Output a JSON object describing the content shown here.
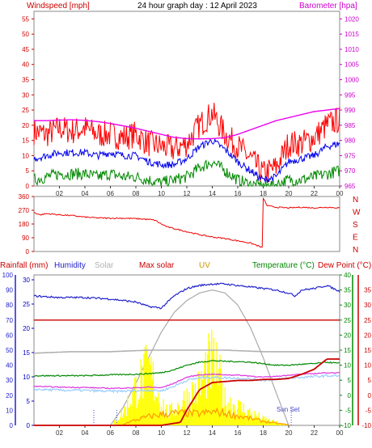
{
  "chart_data": [
    {
      "type": "line",
      "title": "24 hour graph day : 12 April 2023",
      "y_left_label": "Windspeed [mph]",
      "y_right_label": "Barometer [hpa]",
      "y_left_ticks": [
        "0",
        "5",
        "10",
        "15",
        "20",
        "25",
        "30",
        "35",
        "40",
        "45",
        "50",
        "55"
      ],
      "y_right_ticks": [
        "965",
        "970",
        "975",
        "980",
        "985",
        "990",
        "995",
        "1000",
        "1005",
        "1010",
        "1015",
        "1020"
      ],
      "ylim_left": [
        0,
        57.5
      ],
      "ylim_right": [
        965,
        1022.5
      ],
      "x_ticks": [
        "02",
        "04",
        "06",
        "08",
        "10",
        "12",
        "14",
        "16",
        "18",
        "20",
        "22",
        "00"
      ],
      "xlim": [
        0,
        24
      ],
      "colors": {
        "gust": "#ff0000",
        "avg": "#0000ee",
        "min": "#008800",
        "baro": "#ee00ee",
        "left_axis": "#cc0000",
        "right_axis": "#cc00cc"
      },
      "series": [
        {
          "key": "gust",
          "x": [
            0,
            1,
            2,
            3,
            4,
            5,
            6,
            7,
            8,
            9,
            10,
            11,
            12,
            13,
            14,
            15,
            16,
            17,
            18,
            19,
            20,
            21,
            22,
            23,
            24
          ],
          "values": [
            18,
            17,
            19,
            18,
            19,
            17,
            17,
            16,
            17,
            14,
            13,
            12,
            14,
            20,
            24,
            17,
            13,
            9,
            4,
            6,
            14,
            14,
            16,
            20,
            22
          ]
        },
        {
          "key": "avg",
          "x": [
            0,
            1,
            2,
            3,
            4,
            5,
            6,
            7,
            8,
            9,
            10,
            11,
            12,
            13,
            14,
            15,
            16,
            17,
            18,
            19,
            20,
            21,
            22,
            23,
            24
          ],
          "values": [
            9,
            10,
            11,
            11,
            11,
            10,
            11,
            10,
            10,
            8,
            7,
            7,
            9,
            13,
            15,
            12,
            8,
            5,
            2,
            3,
            8,
            9,
            10,
            13,
            14
          ]
        },
        {
          "key": "min",
          "x": [
            0,
            1,
            2,
            3,
            4,
            5,
            6,
            7,
            8,
            9,
            10,
            11,
            12,
            13,
            14,
            15,
            16,
            17,
            18,
            19,
            20,
            21,
            22,
            23,
            24
          ],
          "values": [
            2,
            3,
            4,
            4,
            4,
            3,
            4,
            3,
            3,
            2,
            1,
            2,
            3,
            6,
            8,
            5,
            2,
            0.5,
            0,
            0.5,
            2,
            2,
            3,
            4,
            5
          ]
        },
        {
          "key": "baro",
          "x": [
            0,
            1,
            2,
            3,
            4,
            5,
            6,
            7,
            8,
            9,
            10,
            11,
            12,
            13,
            14,
            15,
            16,
            17,
            18,
            19,
            20,
            21,
            22,
            23,
            24
          ],
          "values": [
            986.5,
            986.5,
            986.7,
            986.8,
            986.6,
            986.2,
            985.6,
            984.8,
            984,
            983,
            982,
            981,
            980.6,
            980.5,
            980.6,
            980.9,
            982,
            983.5,
            985,
            986.5,
            987.5,
            988.5,
            989.5,
            990,
            990.5
          ]
        }
      ]
    },
    {
      "type": "scatter",
      "y_ticks": [
        "360",
        "270",
        "180",
        "90",
        "0"
      ],
      "ylim": [
        0,
        360
      ],
      "right_labels": [
        "N",
        "W",
        "S",
        "E",
        "N"
      ],
      "colors": {
        "dir": "#ee0000",
        "axis": "#cc0000"
      },
      "series": [
        {
          "key": "dir",
          "x": [
            0,
            0.5,
            1,
            2,
            3,
            4,
            5,
            6,
            7,
            8,
            9,
            9.5,
            10,
            10.5,
            11,
            12,
            13,
            14,
            15,
            16,
            17,
            17.5,
            17.9,
            18,
            18.3,
            19,
            20,
            21,
            22,
            23,
            24
          ],
          "values": [
            255,
            240,
            248,
            240,
            235,
            225,
            220,
            218,
            218,
            215,
            210,
            205,
            180,
            160,
            150,
            130,
            110,
            95,
            85,
            70,
            55,
            40,
            25,
            350,
            300,
            290,
            285,
            290,
            285,
            290,
            285
          ]
        }
      ]
    },
    {
      "type": "line",
      "legend": [
        "Rainfall (mm)",
        "Humidity",
        "Solar",
        "Max solar",
        "UV",
        "Temperature (°C)",
        "Dew Point (°C)"
      ],
      "annotation": "Sun Set",
      "y_humidity_ticks": [
        "0",
        "10",
        "20",
        "30",
        "40",
        "50",
        "60",
        "70",
        "80",
        "90",
        "100"
      ],
      "y_rain_ticks": [
        "0",
        "5",
        "10",
        "15",
        "20",
        "25",
        "30"
      ],
      "y_temp_ticks": [
        "-10",
        "-5",
        "0",
        "5",
        "10",
        "15",
        "20",
        "25",
        "30",
        "35",
        "40"
      ],
      "y_dew_ticks": [
        "-10",
        "-5",
        "0",
        "5",
        "10",
        "15",
        "20",
        "25",
        "30",
        "35"
      ],
      "x_ticks": [
        "02",
        "04",
        "06",
        "08",
        "10",
        "12",
        "14",
        "16",
        "18",
        "20",
        "22",
        "00"
      ],
      "xlim": [
        0,
        24
      ],
      "colors": {
        "rain_label": "#cc0000",
        "rain_axis": "#0000cc",
        "humidity": "#2222cc",
        "solar": "#b0b0b0",
        "maxsolar": "#cc0000",
        "uv": "#cc9900",
        "temp": "#008800",
        "dew": "#cc0000",
        "rainline": "#cc0000",
        "tempcurve": "#aaaaaa",
        "yellow": "#ffff00",
        "orange": "#ff9900",
        "magenta": "#dd33dd",
        "lightblue": "#99ccff"
      },
      "humidity": {
        "x": [
          0,
          2,
          4,
          6,
          8,
          9,
          10,
          11,
          12,
          13,
          14,
          15,
          16,
          17,
          18,
          19,
          20,
          20.5,
          21,
          22,
          23,
          24
        ],
        "values": [
          86,
          85,
          85,
          84,
          82,
          79,
          78,
          86,
          91,
          93,
          94,
          94,
          93,
          92,
          91,
          90,
          88,
          86,
          90,
          91,
          93,
          89
        ]
      },
      "max_solar_flat": {
        "x": [
          0,
          24
        ],
        "values": [
          70,
          70
        ]
      },
      "grey_line": {
        "x": [
          0,
          3,
          6,
          9,
          12,
          15,
          18,
          21,
          24
        ],
        "values": [
          48,
          49,
          49,
          50,
          50,
          50,
          49,
          49,
          49
        ]
      },
      "temp": {
        "x": [
          0,
          2,
          4,
          6,
          8,
          9,
          10,
          11,
          12,
          13,
          14,
          15,
          16,
          17,
          18,
          19,
          20,
          21,
          22,
          23,
          24
        ],
        "values": [
          6.5,
          6.5,
          6.5,
          6.8,
          7,
          7.2,
          7.5,
          8.5,
          10,
          11,
          11.5,
          11.3,
          11.2,
          11,
          10.5,
          10,
          10,
          10.3,
          10.5,
          11,
          10.6
        ]
      },
      "dew": {
        "x": [
          0,
          2,
          4,
          6,
          8,
          9,
          10,
          11,
          12,
          13,
          14,
          15,
          16,
          17,
          18,
          19,
          20,
          21,
          22,
          23,
          24
        ],
        "values": [
          3,
          2.7,
          2.6,
          2.3,
          2.5,
          2.7,
          2.5,
          4,
          6,
          6.8,
          7,
          6.8,
          6.7,
          6.4,
          6,
          6.3,
          6.7,
          7,
          7.2,
          7.5,
          7.4
        ]
      },
      "rain": {
        "x": [
          0,
          8,
          9,
          10,
          11,
          11.5,
          12,
          13,
          14,
          15,
          16,
          17,
          18,
          19,
          20,
          21,
          22,
          23,
          24
        ],
        "values": [
          0,
          0,
          0,
          0,
          0.2,
          0.3,
          1.5,
          3.5,
          4.2,
          4.3,
          4.4,
          4.4,
          4.5,
          4.5,
          4.6,
          5,
          5.5,
          6.5,
          6.5
        ]
      },
      "solar": {
        "x": [
          6,
          7,
          8,
          9,
          10,
          10.5,
          11,
          12,
          13,
          13.5,
          14,
          14.5,
          15,
          16,
          17,
          18,
          19,
          20
        ],
        "values": [
          0,
          20,
          60,
          90,
          40,
          20,
          25,
          45,
          60,
          90,
          100,
          80,
          40,
          30,
          20,
          10,
          5,
          0
        ]
      },
      "max_solar_curve": {
        "x": [
          6,
          7,
          8,
          9,
          10,
          11,
          12,
          13,
          14,
          15,
          16,
          17,
          18,
          19,
          20
        ],
        "values": [
          0,
          12,
          28,
          45,
          62,
          75,
          83,
          88,
          90,
          88,
          80,
          65,
          45,
          22,
          0
        ]
      },
      "uv_dots": {
        "x": [
          7,
          8,
          9,
          10,
          11,
          12,
          13,
          14,
          15,
          16,
          17,
          18,
          19,
          20
        ],
        "values": [
          2,
          8,
          13,
          16,
          18,
          18,
          17,
          20,
          18,
          14,
          10,
          6,
          3,
          1
        ]
      }
    }
  ]
}
